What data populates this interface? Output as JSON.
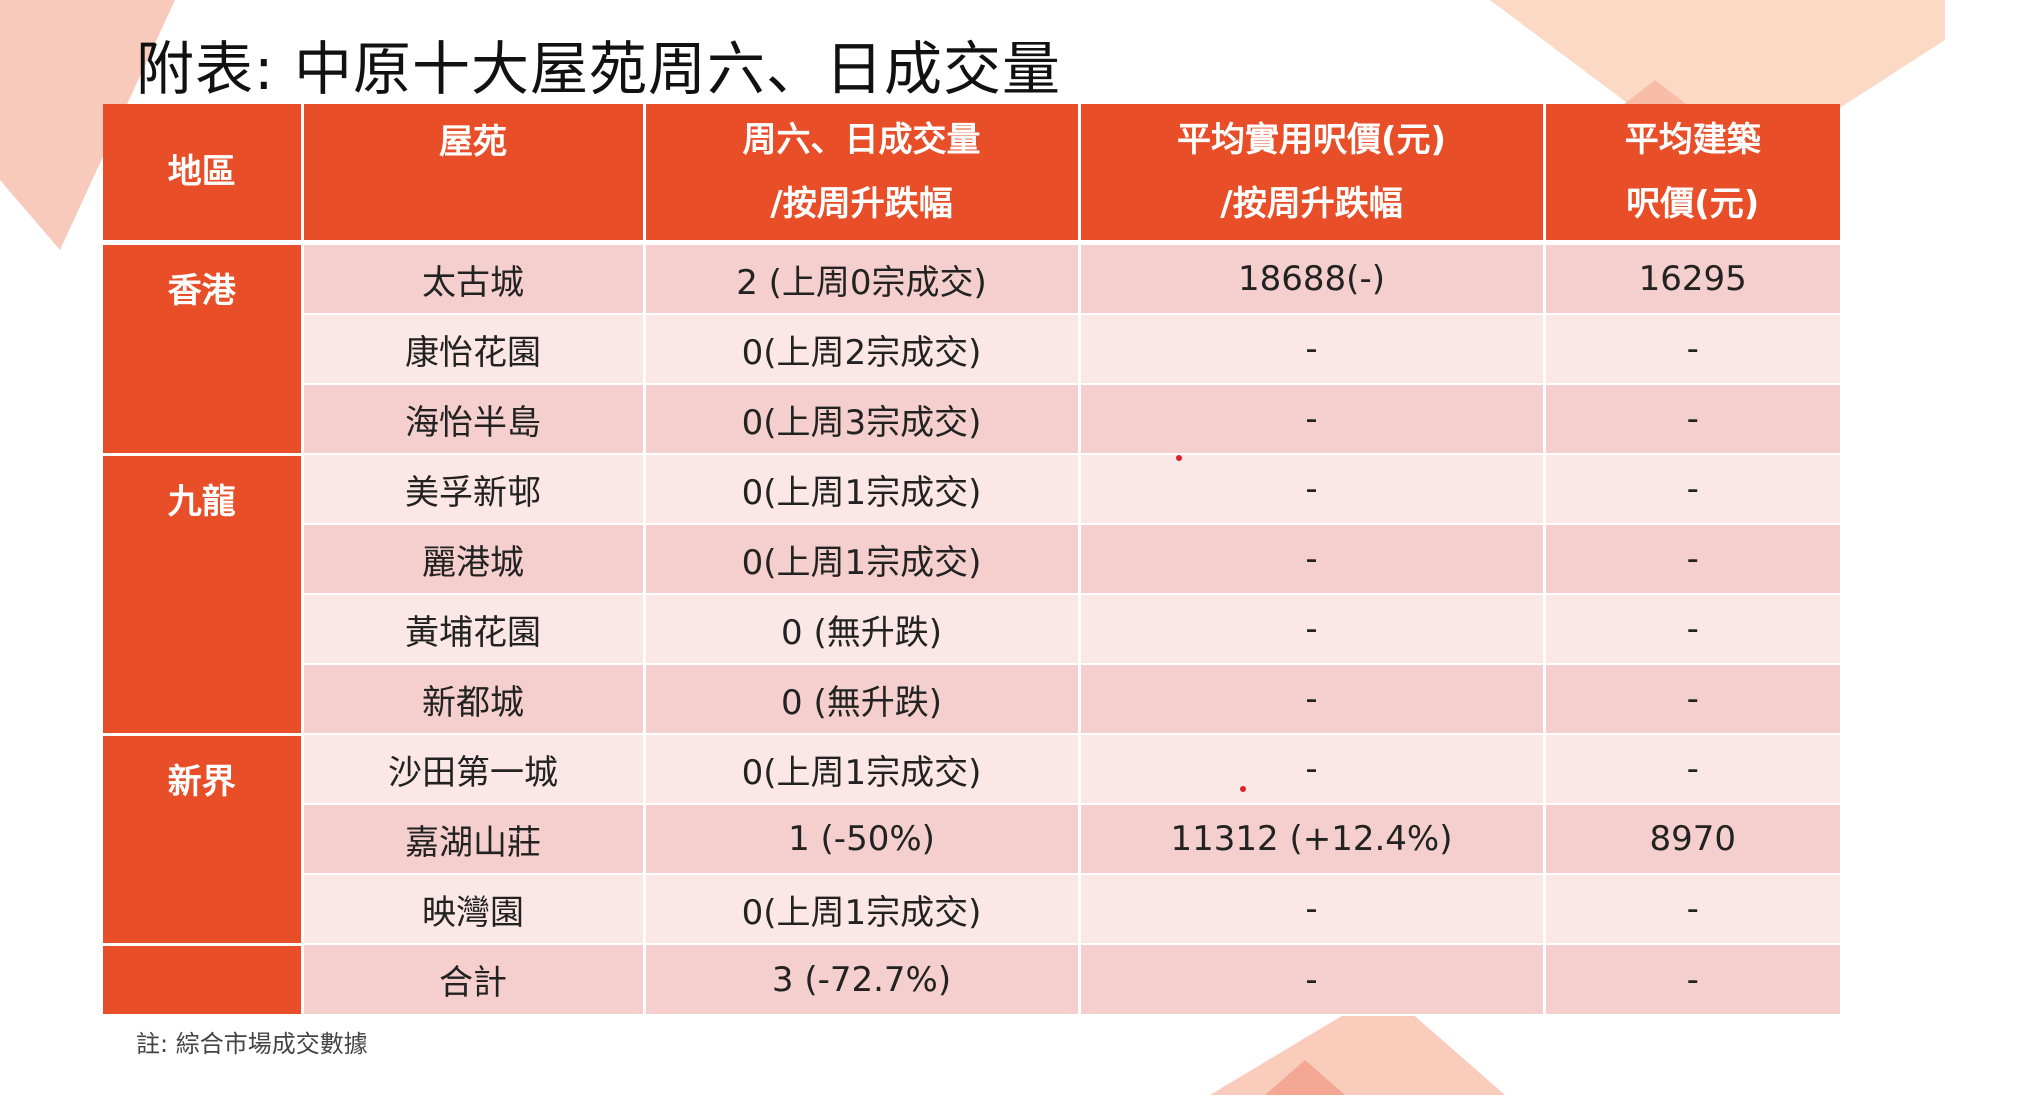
{
  "title": "附表: 中原十大屋苑周六、日成交量",
  "colors": {
    "header_bg": "#e84e28",
    "row_dark": "#f4cfcd",
    "row_light": "#fbe8e6",
    "deco_peach": "#fcd7c1",
    "deco_salmon": "#f7b8a6"
  },
  "table": {
    "headers": {
      "region": "地區",
      "estate": "屋苑",
      "volume_line1": "周六、日成交量",
      "volume_line2": "/按周升跌幅",
      "net_price_line1": "平均實用呎價(元)",
      "net_price_line2": "/按周升跌幅",
      "gross_price_line1": "平均建築",
      "gross_price_line2": "呎價(元)"
    },
    "regions": {
      "hk": "香港",
      "kowloon": "九龍",
      "nt": "新界",
      "total": ""
    },
    "rows": [
      {
        "estate": "太古城",
        "volume": "2 (上周0宗成交)",
        "net_price": "18688(-)",
        "gross_price": "16295"
      },
      {
        "estate": "康怡花園",
        "volume": "0(上周2宗成交)",
        "net_price": "-",
        "gross_price": "-"
      },
      {
        "estate": "海怡半島",
        "volume": "0(上周3宗成交)",
        "net_price": "-",
        "gross_price": "-"
      },
      {
        "estate": "美孚新邨",
        "volume": "0(上周1宗成交)",
        "net_price": "-",
        "gross_price": "-"
      },
      {
        "estate": "麗港城",
        "volume": "0(上周1宗成交)",
        "net_price": "-",
        "gross_price": "-"
      },
      {
        "estate": "黃埔花園",
        "volume": "0 (無升跌)",
        "net_price": "-",
        "gross_price": "-"
      },
      {
        "estate": "新都城",
        "volume": "0 (無升跌)",
        "net_price": "-",
        "gross_price": "-"
      },
      {
        "estate": "沙田第一城",
        "volume": "0(上周1宗成交)",
        "net_price": "-",
        "gross_price": "-"
      },
      {
        "estate": "嘉湖山莊",
        "volume": "1 (-50%)",
        "net_price": "11312 (+12.4%)",
        "gross_price": "8970"
      },
      {
        "estate": "映灣園",
        "volume": "0(上周1宗成交)",
        "net_price": "-",
        "gross_price": "-"
      },
      {
        "estate": "合計",
        "volume": "3 (-72.7%)",
        "net_price": "-",
        "gross_price": "-"
      }
    ]
  },
  "note": "註: 綜合市場成交數據"
}
